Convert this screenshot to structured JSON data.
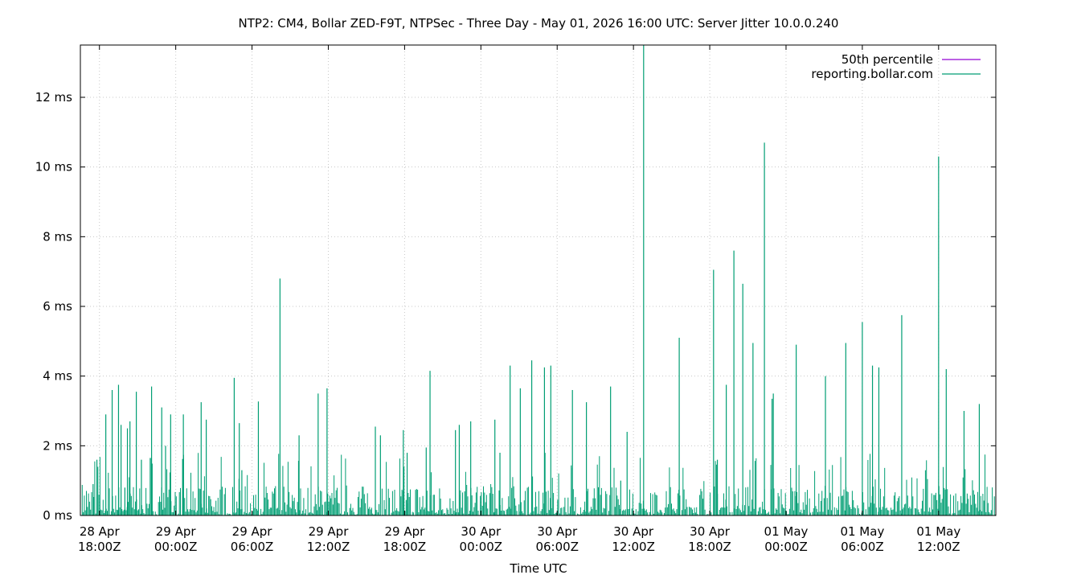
{
  "chart_data": {
    "type": "line",
    "title": "NTP2: CM4, Bollar ZED-F9T, NTPSec - Three Day - May 01, 2026 16:00 UTC: Server Jitter 10.0.0.240",
    "xlabel": "Time UTC",
    "ylabel": "",
    "x_unit": "hours since 28 Apr 18:00Z",
    "xlim": [
      -1.5,
      70.5
    ],
    "ylim": [
      0,
      13.5
    ],
    "grid": true,
    "legend_position": "top-right",
    "y_ticks": [
      {
        "value": 0,
        "label": "0 ms"
      },
      {
        "value": 2,
        "label": "2 ms"
      },
      {
        "value": 4,
        "label": "4 ms"
      },
      {
        "value": 6,
        "label": "6 ms"
      },
      {
        "value": 8,
        "label": "8 ms"
      },
      {
        "value": 10,
        "label": "10 ms"
      },
      {
        "value": 12,
        "label": "12 ms"
      }
    ],
    "x_ticks": [
      {
        "value": 0,
        "line1": "28 Apr",
        "line2": "18:00Z"
      },
      {
        "value": 6,
        "line1": "29 Apr",
        "line2": "00:00Z"
      },
      {
        "value": 12,
        "line1": "29 Apr",
        "line2": "06:00Z"
      },
      {
        "value": 18,
        "line1": "29 Apr",
        "line2": "12:00Z"
      },
      {
        "value": 24,
        "line1": "29 Apr",
        "line2": "18:00Z"
      },
      {
        "value": 30,
        "line1": "30 Apr",
        "line2": "00:00Z"
      },
      {
        "value": 36,
        "line1": "30 Apr",
        "line2": "06:00Z"
      },
      {
        "value": 42,
        "line1": "30 Apr",
        "line2": "12:00Z"
      },
      {
        "value": 48,
        "line1": "30 Apr",
        "line2": "18:00Z"
      },
      {
        "value": 54,
        "line1": "01 May",
        "line2": "00:00Z"
      },
      {
        "value": 60,
        "line1": "01 May",
        "line2": "06:00Z"
      },
      {
        "value": 66,
        "line1": "01 May",
        "line2": "12:00Z"
      }
    ],
    "series": [
      {
        "name": "50th percentile",
        "color": "#9400d3",
        "values": []
      },
      {
        "name": "reporting.bollar.com",
        "color": "#009e73",
        "x": [
          -0.5,
          -0.2,
          0.5,
          1.0,
          1.5,
          1.7,
          2.0,
          2.2,
          2.4,
          2.9,
          3.3,
          4.1,
          4.9,
          5.2,
          5.6,
          6.6,
          8.0,
          8.4,
          10.6,
          11.0,
          11.2,
          12.5,
          14.2,
          15.7,
          17.2,
          17.9,
          21.7,
          22.1,
          23.9,
          24.2,
          25.7,
          26.0,
          28.0,
          28.3,
          29.2,
          31.1,
          31.5,
          32.3,
          33.1,
          34.0,
          35.0,
          35.5,
          37.2,
          38.3,
          40.2,
          41.0,
          41.5,
          42.8,
          45.6,
          48.3,
          48.6,
          49.3,
          49.9,
          50.6,
          51.4,
          52.3,
          52.9,
          53.0,
          54.8,
          57.1,
          58.7,
          60.0,
          60.8,
          61.3,
          63.1,
          66.0,
          66.6,
          68.0,
          69.2
        ],
        "values": [
          0.9,
          1.6,
          2.9,
          3.6,
          3.75,
          2.6,
          0.8,
          2.5,
          2.7,
          3.55,
          1.6,
          3.7,
          3.1,
          2.0,
          2.9,
          2.9,
          3.25,
          2.75,
          3.95,
          2.65,
          1.3,
          3.27,
          6.8,
          2.3,
          3.5,
          3.65,
          2.55,
          2.3,
          2.45,
          1.8,
          1.95,
          4.15,
          2.45,
          2.6,
          2.7,
          2.75,
          1.8,
          4.3,
          3.65,
          4.45,
          4.25,
          4.3,
          3.6,
          3.25,
          3.7,
          1.0,
          2.4,
          13.5,
          5.1,
          7.05,
          1.6,
          3.75,
          7.6,
          6.65,
          4.95,
          10.7,
          3.35,
          3.5,
          4.9,
          4.0,
          4.95,
          5.55,
          4.3,
          4.25,
          5.75,
          10.3,
          4.2,
          3.0,
          3.2
        ]
      }
    ]
  }
}
